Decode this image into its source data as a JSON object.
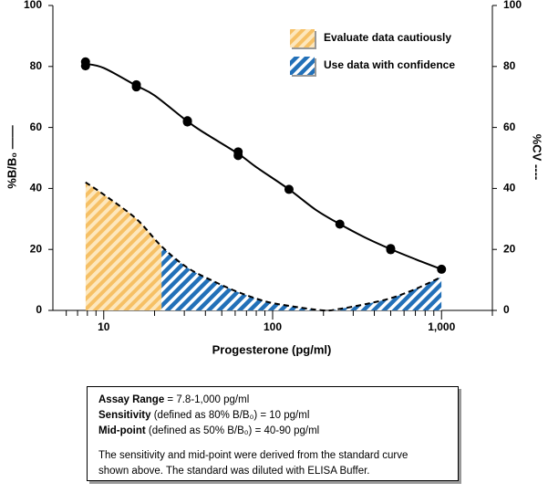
{
  "chart_data": {
    "type": "line",
    "xlabel": "Progesterone (pg/ml)",
    "ylabel": "%B/B₀ ——",
    "y2label": "%CV ----",
    "xscale": "log",
    "xlim": [
      5,
      2000
    ],
    "xticks": [
      10,
      100,
      {
        "value": 1000,
        "label": "1,000"
      }
    ],
    "xminor": [
      6,
      7,
      8,
      9,
      20,
      30,
      40,
      50,
      60,
      70,
      80,
      90,
      200,
      300,
      400,
      500,
      600,
      700,
      800,
      900,
      2000
    ],
    "ylim": [
      0,
      100
    ],
    "yticks": [
      0,
      20,
      40,
      60,
      80,
      100
    ],
    "y2lim": [
      0,
      100
    ],
    "y2ticks": [
      0,
      20,
      40,
      60,
      80,
      100
    ],
    "series": [
      {
        "style": "markers",
        "color": "#000000",
        "x": [
          7.8,
          7.8,
          15.6,
          15.6,
          31.3,
          31.3,
          62.5,
          62.5,
          125,
          250,
          500,
          500,
          1000
        ],
        "values": [
          81.5,
          80.2,
          74,
          73.3,
          62.2,
          61.8,
          52,
          50.8,
          39.7,
          28.3,
          20.3,
          19.9,
          13.5
        ]
      },
      {
        "style": "solid",
        "color": "#000000",
        "x": [
          7.8,
          10,
          15.6,
          20,
          31.3,
          40,
          62.5,
          80,
          125,
          180,
          250,
          350,
          500,
          700,
          1000
        ],
        "values": [
          80.9,
          79.5,
          73.7,
          70.5,
          62,
          58,
          51.4,
          47,
          39.7,
          33,
          28.3,
          24,
          20.1,
          16.8,
          13.5
        ]
      },
      {
        "style": "dashed",
        "axis": "y2",
        "color": "#000000",
        "x": [
          7.8,
          10,
          15.6,
          22,
          31.3,
          45,
          62.5,
          90,
          125,
          200,
          250,
          350,
          500,
          700,
          1000
        ],
        "values": [
          42,
          38,
          30,
          21,
          14,
          9.5,
          6,
          3,
          1.5,
          0,
          0.5,
          2,
          4,
          7,
          11
        ]
      }
    ],
    "zones": [
      {
        "name": "Evaluate data cautiously",
        "color": "#f6c065",
        "x_from": 7.8,
        "x_to": 22
      },
      {
        "name": "Use data with confidence",
        "color": "#2270b8",
        "x_from": 22,
        "x_to": 1000
      }
    ]
  },
  "info_box": {
    "lines": [
      [
        {
          "text": "Assay Range",
          "bold": true
        },
        {
          "text": " = 7.8-1,000 pg/ml"
        }
      ],
      [
        {
          "text": "Sensitivity",
          "bold": true
        },
        {
          "text": " (defined as 80% B/B₀) = 10 pg/ml"
        }
      ],
      [
        {
          "text": "Mid-point",
          "bold": true
        },
        {
          "text": " (defined as 50% B/B₀) = 40-90 pg/ml"
        }
      ],
      [
        {
          "text": "The sensitivity and mid-point were derived from the standard curve"
        }
      ],
      [
        {
          "text": "shown above. The standard was diluted with ELISA Buffer."
        }
      ]
    ]
  }
}
